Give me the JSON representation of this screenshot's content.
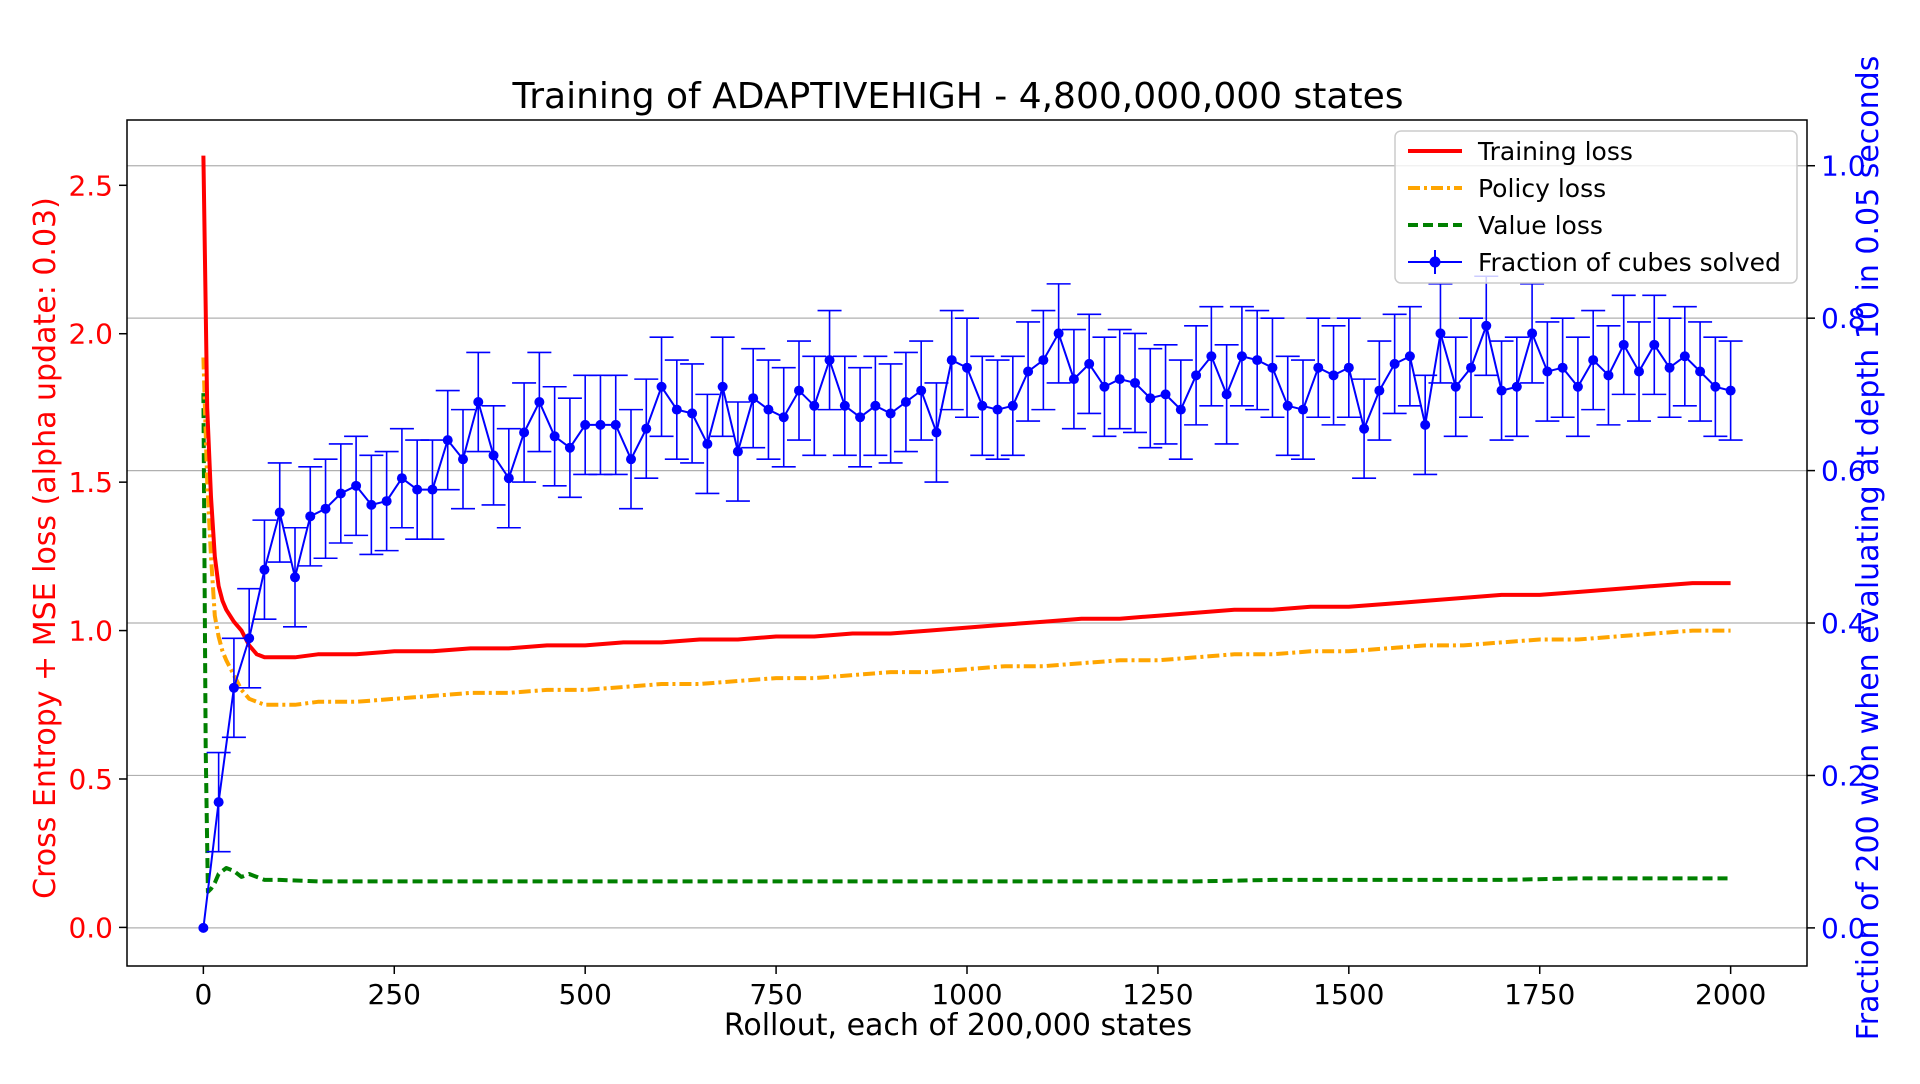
{
  "chart_data": {
    "type": "line",
    "title": "Training of ADAPTIVEHIGH - 4,800,000,000 states",
    "xlabel": "Rollout, each of 200,000 states",
    "ylabel_left": "Cross Entropy + MSE loss (alpha update: 0.03)",
    "ylabel_right": "Fraction of 200 won when evaluating at depth 10 in 0.05 seconds",
    "xlim": [
      -100,
      2100
    ],
    "ylim_left": [
      -0.13,
      2.72
    ],
    "ylim_right": [
      -0.05,
      1.06
    ],
    "x_ticks": [
      0,
      250,
      500,
      750,
      1000,
      1250,
      1500,
      1750,
      2000
    ],
    "x_tick_labels": [
      "0",
      "250",
      "500",
      "750",
      "1000",
      "1250",
      "1500",
      "1750",
      "2000"
    ],
    "y_left_ticks": [
      0.0,
      0.5,
      1.0,
      1.5,
      2.0,
      2.5
    ],
    "y_left_tick_labels": [
      "0.0",
      "0.5",
      "1.0",
      "1.5",
      "2.0",
      "2.5"
    ],
    "y_right_ticks": [
      0.0,
      0.2,
      0.4,
      0.6,
      0.8,
      1.0
    ],
    "y_right_tick_labels": [
      "0.0",
      "0.2",
      "0.4",
      "0.6",
      "0.8",
      "1.0"
    ],
    "grid": "horizontal (right axis)",
    "legend_position": "top-right",
    "colors": {
      "training": "#ff0000",
      "policy": "#ffa500",
      "value": "#008000",
      "solved": "#0000ff"
    },
    "series": [
      {
        "name": "Training loss",
        "axis": "left",
        "style": "solid",
        "x": [
          0,
          5,
          10,
          15,
          20,
          25,
          30,
          40,
          50,
          60,
          70,
          80,
          100,
          120,
          150,
          200,
          250,
          300,
          350,
          400,
          450,
          500,
          550,
          600,
          650,
          700,
          750,
          800,
          850,
          900,
          950,
          1000,
          1050,
          1100,
          1150,
          1200,
          1250,
          1300,
          1350,
          1400,
          1450,
          1500,
          1550,
          1600,
          1650,
          1700,
          1750,
          1800,
          1850,
          1900,
          1950,
          2000
        ],
        "y": [
          2.6,
          1.75,
          1.45,
          1.25,
          1.15,
          1.1,
          1.07,
          1.03,
          1.0,
          0.95,
          0.92,
          0.91,
          0.91,
          0.91,
          0.92,
          0.92,
          0.93,
          0.93,
          0.94,
          0.94,
          0.95,
          0.95,
          0.96,
          0.96,
          0.97,
          0.97,
          0.98,
          0.98,
          0.99,
          0.99,
          1.0,
          1.01,
          1.02,
          1.03,
          1.04,
          1.04,
          1.05,
          1.06,
          1.07,
          1.07,
          1.08,
          1.08,
          1.09,
          1.1,
          1.11,
          1.12,
          1.12,
          1.13,
          1.14,
          1.15,
          1.16,
          1.16
        ]
      },
      {
        "name": "Policy loss",
        "axis": "left",
        "style": "dashdot",
        "x": [
          0,
          5,
          10,
          15,
          20,
          25,
          30,
          40,
          50,
          60,
          70,
          80,
          100,
          120,
          150,
          200,
          250,
          300,
          350,
          400,
          450,
          500,
          550,
          600,
          650,
          700,
          750,
          800,
          850,
          900,
          950,
          1000,
          1050,
          1100,
          1150,
          1200,
          1250,
          1300,
          1350,
          1400,
          1450,
          1500,
          1550,
          1600,
          1650,
          1700,
          1750,
          1800,
          1850,
          1900,
          1950,
          2000
        ],
        "y": [
          1.92,
          1.5,
          1.25,
          1.05,
          0.98,
          0.93,
          0.9,
          0.85,
          0.8,
          0.77,
          0.76,
          0.75,
          0.75,
          0.75,
          0.76,
          0.76,
          0.77,
          0.78,
          0.79,
          0.79,
          0.8,
          0.8,
          0.81,
          0.82,
          0.82,
          0.83,
          0.84,
          0.84,
          0.85,
          0.86,
          0.86,
          0.87,
          0.88,
          0.88,
          0.89,
          0.9,
          0.9,
          0.91,
          0.92,
          0.92,
          0.93,
          0.93,
          0.94,
          0.95,
          0.95,
          0.96,
          0.97,
          0.97,
          0.98,
          0.99,
          1.0,
          1.0
        ]
      },
      {
        "name": "Value loss",
        "axis": "left",
        "style": "dashed",
        "x": [
          0,
          3,
          6,
          10,
          15,
          20,
          30,
          40,
          50,
          60,
          80,
          100,
          150,
          200,
          300,
          400,
          500,
          600,
          700,
          800,
          900,
          1000,
          1100,
          1200,
          1300,
          1400,
          1500,
          1600,
          1700,
          1800,
          1900,
          2000
        ],
        "y": [
          1.8,
          0.6,
          0.12,
          0.13,
          0.15,
          0.18,
          0.2,
          0.19,
          0.17,
          0.18,
          0.16,
          0.16,
          0.155,
          0.155,
          0.155,
          0.155,
          0.155,
          0.155,
          0.155,
          0.155,
          0.155,
          0.155,
          0.155,
          0.155,
          0.155,
          0.16,
          0.16,
          0.16,
          0.16,
          0.165,
          0.165,
          0.165
        ]
      },
      {
        "name": "Fraction of cubes solved",
        "axis": "right",
        "style": "line-markers-errorbars",
        "x": [
          0,
          20,
          40,
          60,
          80,
          100,
          120,
          140,
          160,
          180,
          200,
          220,
          240,
          260,
          280,
          300,
          320,
          340,
          360,
          380,
          400,
          420,
          440,
          460,
          480,
          500,
          520,
          540,
          560,
          580,
          600,
          620,
          640,
          660,
          680,
          700,
          720,
          740,
          760,
          780,
          800,
          820,
          840,
          860,
          880,
          900,
          920,
          940,
          960,
          980,
          1000,
          1020,
          1040,
          1060,
          1080,
          1100,
          1120,
          1140,
          1160,
          1180,
          1200,
          1220,
          1240,
          1260,
          1280,
          1300,
          1320,
          1340,
          1360,
          1380,
          1400,
          1420,
          1440,
          1460,
          1480,
          1500,
          1520,
          1540,
          1560,
          1580,
          1600,
          1620,
          1640,
          1660,
          1680,
          1700,
          1720,
          1740,
          1760,
          1780,
          1800,
          1820,
          1840,
          1860,
          1880,
          1900,
          1920,
          1940,
          1960,
          1980,
          2000
        ],
        "y": [
          0.0,
          0.165,
          0.315,
          0.38,
          0.47,
          0.545,
          0.46,
          0.54,
          0.55,
          0.57,
          0.58,
          0.555,
          0.56,
          0.59,
          0.575,
          0.575,
          0.64,
          0.615,
          0.69,
          0.62,
          0.59,
          0.65,
          0.69,
          0.645,
          0.63,
          0.66,
          0.66,
          0.66,
          0.615,
          0.655,
          0.71,
          0.68,
          0.675,
          0.635,
          0.71,
          0.625,
          0.695,
          0.68,
          0.67,
          0.705,
          0.685,
          0.745,
          0.685,
          0.67,
          0.685,
          0.675,
          0.69,
          0.705,
          0.65,
          0.745,
          0.735,
          0.685,
          0.68,
          0.685,
          0.73,
          0.745,
          0.78,
          0.72,
          0.74,
          0.71,
          0.72,
          0.715,
          0.695,
          0.7,
          0.68,
          0.725,
          0.75,
          0.7,
          0.75,
          0.745,
          0.735,
          0.685,
          0.68,
          0.735,
          0.725,
          0.735,
          0.655,
          0.705,
          0.74,
          0.75,
          0.66,
          0.78,
          0.71,
          0.735,
          0.79,
          0.705,
          0.71,
          0.78,
          0.73,
          0.735,
          0.71,
          0.745,
          0.725,
          0.765,
          0.73,
          0.765,
          0.735,
          0.75,
          0.73,
          0.71,
          0.705
        ],
        "yerr": 0.065
      }
    ]
  }
}
